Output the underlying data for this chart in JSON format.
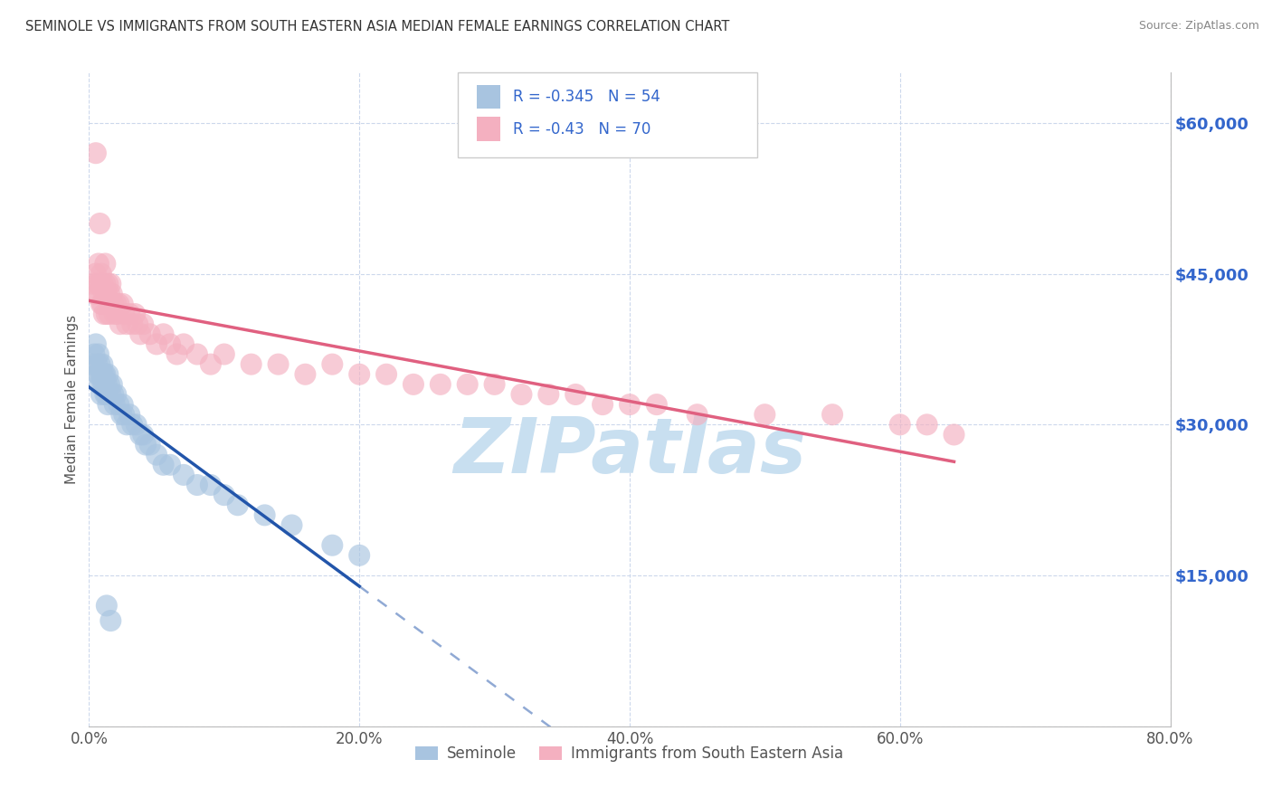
{
  "title": "SEMINOLE VS IMMIGRANTS FROM SOUTH EASTERN ASIA MEDIAN FEMALE EARNINGS CORRELATION CHART",
  "source": "Source: ZipAtlas.com",
  "ylabel": "Median Female Earnings",
  "xlabel_ticks": [
    "0.0%",
    "20.0%",
    "40.0%",
    "60.0%",
    "80.0%"
  ],
  "xlabel_tick_vals": [
    0.0,
    0.2,
    0.4,
    0.6,
    0.8
  ],
  "ytick_vals": [
    0,
    15000,
    30000,
    45000,
    60000
  ],
  "ytick_labels": [
    "",
    "$15,000",
    "$30,000",
    "$45,000",
    "$60,000"
  ],
  "xmin": 0.0,
  "xmax": 0.8,
  "ymin": 0,
  "ymax": 65000,
  "blue_R": -0.345,
  "blue_N": 54,
  "pink_R": -0.43,
  "pink_N": 70,
  "blue_color": "#a8c4e0",
  "blue_line_color": "#2255aa",
  "pink_color": "#f4b0c0",
  "pink_line_color": "#e06080",
  "blue_label": "Seminole",
  "pink_label": "Immigrants from South Eastern Asia",
  "watermark": "ZIPatlas",
  "watermark_color": "#c8dff0",
  "legend_text_color": "#3366cc",
  "title_color": "#333333",
  "source_color": "#888888",
  "ytick_color": "#3366cc",
  "background_color": "#ffffff",
  "grid_color": "#ccd8ec",
  "blue_scatter_x": [
    0.003,
    0.004,
    0.005,
    0.006,
    0.006,
    0.007,
    0.007,
    0.008,
    0.008,
    0.009,
    0.009,
    0.01,
    0.01,
    0.01,
    0.011,
    0.011,
    0.012,
    0.012,
    0.013,
    0.013,
    0.014,
    0.014,
    0.015,
    0.016,
    0.017,
    0.018,
    0.019,
    0.02,
    0.022,
    0.024,
    0.025,
    0.026,
    0.028,
    0.03,
    0.032,
    0.035,
    0.038,
    0.04,
    0.042,
    0.045,
    0.05,
    0.055,
    0.06,
    0.07,
    0.08,
    0.09,
    0.1,
    0.11,
    0.13,
    0.15,
    0.18,
    0.2,
    0.013,
    0.016
  ],
  "blue_scatter_y": [
    36000,
    37000,
    38000,
    36000,
    35000,
    37000,
    35000,
    36000,
    34000,
    35000,
    33000,
    36000,
    35000,
    34000,
    35000,
    34000,
    35000,
    33000,
    34000,
    33000,
    35000,
    32000,
    34000,
    33000,
    34000,
    33000,
    32000,
    33000,
    32000,
    31000,
    32000,
    31000,
    30000,
    31000,
    30000,
    30000,
    29000,
    29000,
    28000,
    28000,
    27000,
    26000,
    26000,
    25000,
    24000,
    24000,
    23000,
    22000,
    21000,
    20000,
    18000,
    17000,
    12000,
    10500
  ],
  "pink_scatter_x": [
    0.003,
    0.004,
    0.005,
    0.006,
    0.007,
    0.007,
    0.008,
    0.009,
    0.009,
    0.01,
    0.01,
    0.011,
    0.011,
    0.012,
    0.013,
    0.013,
    0.014,
    0.015,
    0.015,
    0.016,
    0.017,
    0.018,
    0.019,
    0.02,
    0.021,
    0.022,
    0.023,
    0.025,
    0.026,
    0.028,
    0.03,
    0.032,
    0.034,
    0.036,
    0.038,
    0.04,
    0.045,
    0.05,
    0.055,
    0.06,
    0.065,
    0.07,
    0.08,
    0.09,
    0.1,
    0.12,
    0.14,
    0.16,
    0.18,
    0.2,
    0.22,
    0.24,
    0.26,
    0.28,
    0.3,
    0.32,
    0.34,
    0.36,
    0.38,
    0.4,
    0.42,
    0.45,
    0.5,
    0.55,
    0.6,
    0.62,
    0.64,
    0.005,
    0.008,
    0.012
  ],
  "pink_scatter_y": [
    44000,
    43000,
    45000,
    44000,
    46000,
    43000,
    44000,
    45000,
    42000,
    44000,
    42000,
    43000,
    41000,
    44000,
    43000,
    41000,
    44000,
    43000,
    41000,
    44000,
    43000,
    42000,
    41000,
    42000,
    41000,
    42000,
    40000,
    42000,
    41000,
    40000,
    41000,
    40000,
    41000,
    40000,
    39000,
    40000,
    39000,
    38000,
    39000,
    38000,
    37000,
    38000,
    37000,
    36000,
    37000,
    36000,
    36000,
    35000,
    36000,
    35000,
    35000,
    34000,
    34000,
    34000,
    34000,
    33000,
    33000,
    33000,
    32000,
    32000,
    32000,
    31000,
    31000,
    31000,
    30000,
    30000,
    29000,
    57000,
    50000,
    46000
  ]
}
